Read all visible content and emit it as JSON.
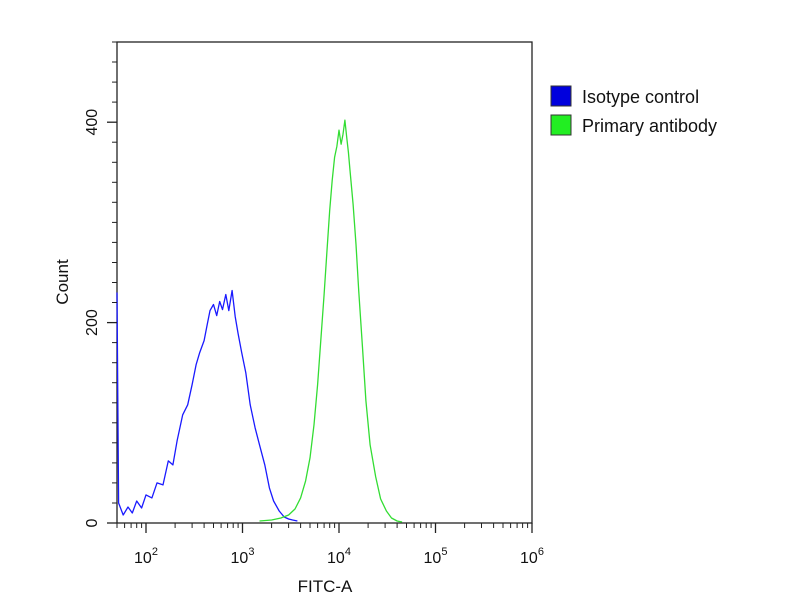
{
  "chart_data": {
    "type": "line",
    "title": "",
    "xlabel": "FITC-A",
    "ylabel": "Count",
    "x_scale": "log",
    "xlim": [
      50,
      1000000
    ],
    "ylim": [
      0,
      480
    ],
    "x_ticks": [
      {
        "value": 100,
        "base": "10",
        "exp": "2"
      },
      {
        "value": 1000,
        "base": "10",
        "exp": "3"
      },
      {
        "value": 10000,
        "base": "10",
        "exp": "4"
      },
      {
        "value": 100000,
        "base": "10",
        "exp": "5"
      },
      {
        "value": 1000000,
        "base": "10",
        "exp": "6"
      }
    ],
    "y_ticks": [
      {
        "value": 0,
        "label": "0"
      },
      {
        "value": 200,
        "label": "200"
      },
      {
        "value": 400,
        "label": "400"
      }
    ],
    "legend_position": "top-right",
    "series": [
      {
        "name": "Isotype control",
        "color": "#1a1aff",
        "swatch_color": "#0000dd",
        "points": [
          [
            50,
            230
          ],
          [
            52,
            20
          ],
          [
            58,
            8
          ],
          [
            65,
            16
          ],
          [
            72,
            10
          ],
          [
            80,
            22
          ],
          [
            90,
            15
          ],
          [
            100,
            28
          ],
          [
            115,
            25
          ],
          [
            130,
            40
          ],
          [
            150,
            38
          ],
          [
            170,
            62
          ],
          [
            190,
            58
          ],
          [
            210,
            82
          ],
          [
            240,
            108
          ],
          [
            270,
            118
          ],
          [
            300,
            138
          ],
          [
            330,
            158
          ],
          [
            360,
            170
          ],
          [
            400,
            182
          ],
          [
            430,
            198
          ],
          [
            460,
            212
          ],
          [
            500,
            218
          ],
          [
            540,
            207
          ],
          [
            580,
            221
          ],
          [
            620,
            213
          ],
          [
            670,
            228
          ],
          [
            720,
            212
          ],
          [
            780,
            232
          ],
          [
            840,
            206
          ],
          [
            900,
            189
          ],
          [
            980,
            170
          ],
          [
            1080,
            150
          ],
          [
            1200,
            118
          ],
          [
            1350,
            95
          ],
          [
            1500,
            78
          ],
          [
            1700,
            58
          ],
          [
            1900,
            35
          ],
          [
            2100,
            22
          ],
          [
            2400,
            12
          ],
          [
            2700,
            6
          ],
          [
            3000,
            4
          ],
          [
            3300,
            3
          ],
          [
            3700,
            2
          ]
        ]
      },
      {
        "name": "Primary antibody",
        "color": "#33dd33",
        "swatch_color": "#22ee22",
        "points": [
          [
            1500,
            2
          ],
          [
            2000,
            3
          ],
          [
            2500,
            5
          ],
          [
            3000,
            8
          ],
          [
            3500,
            14
          ],
          [
            4000,
            25
          ],
          [
            4500,
            42
          ],
          [
            5000,
            65
          ],
          [
            5500,
            98
          ],
          [
            6000,
            138
          ],
          [
            6500,
            185
          ],
          [
            7000,
            228
          ],
          [
            7500,
            272
          ],
          [
            8000,
            312
          ],
          [
            8500,
            342
          ],
          [
            9000,
            365
          ],
          [
            9500,
            376
          ],
          [
            10000,
            392
          ],
          [
            10500,
            378
          ],
          [
            11000,
            388
          ],
          [
            11500,
            402
          ],
          [
            12000,
            385
          ],
          [
            12500,
            370
          ],
          [
            13000,
            352
          ],
          [
            14000,
            318
          ],
          [
            15000,
            278
          ],
          [
            16000,
            232
          ],
          [
            17500,
            175
          ],
          [
            19000,
            122
          ],
          [
            21000,
            78
          ],
          [
            24000,
            46
          ],
          [
            27000,
            24
          ],
          [
            31000,
            12
          ],
          [
            35000,
            5
          ],
          [
            40000,
            2
          ],
          [
            45000,
            1
          ]
        ]
      }
    ]
  }
}
